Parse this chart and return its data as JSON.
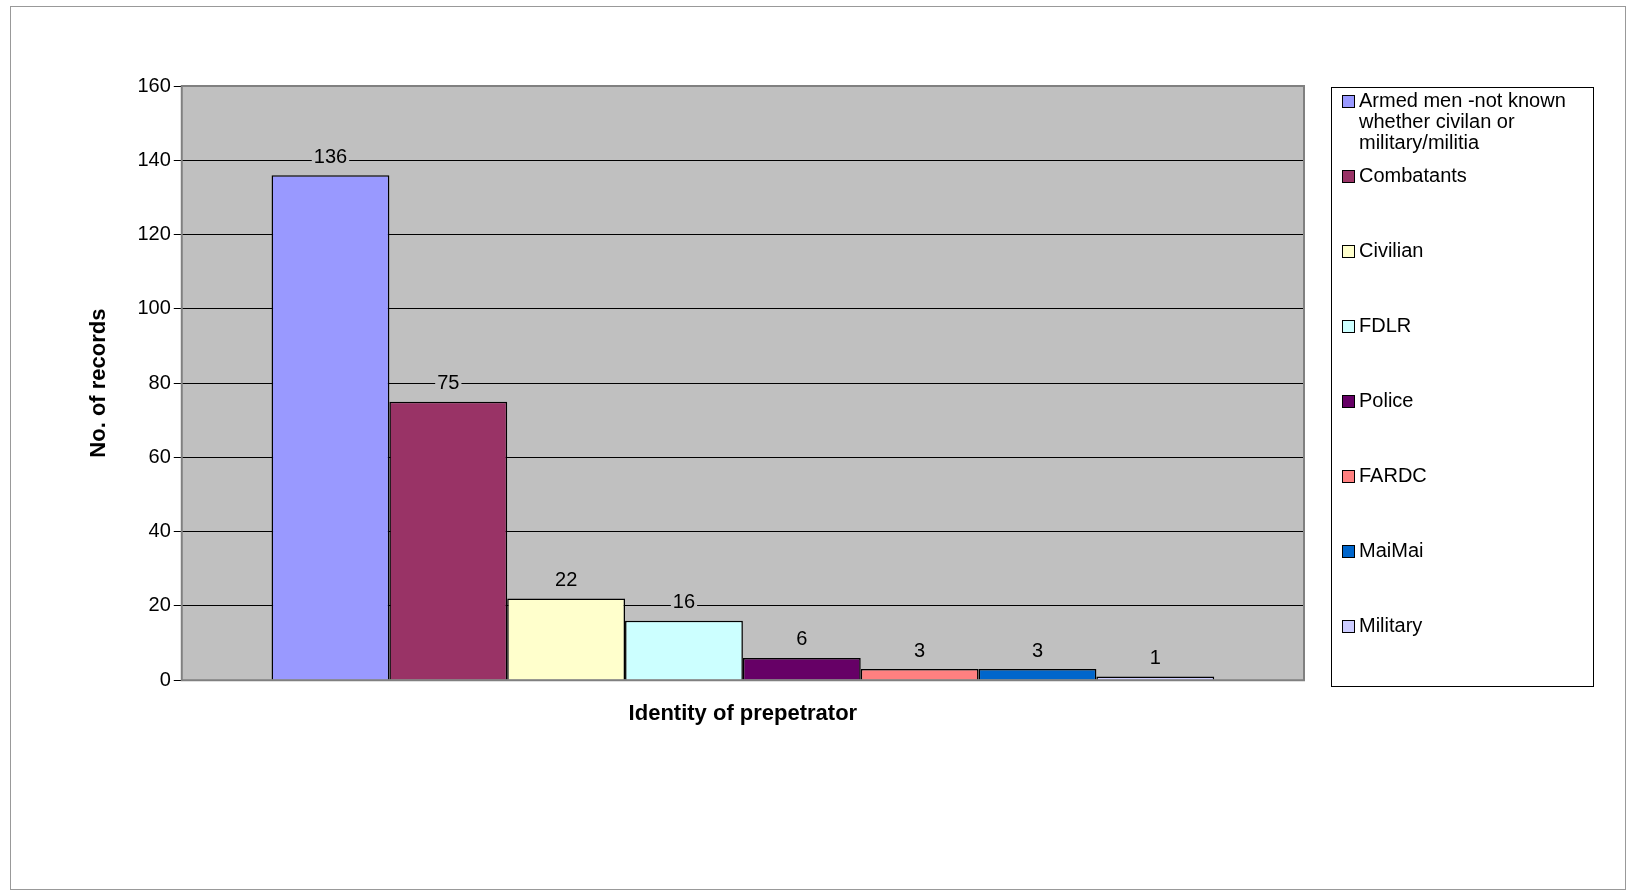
{
  "chart_data": {
    "type": "bar",
    "xlabel": "Identity of prepetrator",
    "ylabel": "No. of records",
    "categories": [
      null
    ],
    "series": [
      {
        "name": "Armed men -not known whether civilan or military/militia",
        "color": "#9999ff",
        "values": [
          136
        ]
      },
      {
        "name": "Combatants",
        "color": "#993366",
        "values": [
          75
        ]
      },
      {
        "name": "Civilian",
        "color": "#ffffcc",
        "values": [
          22
        ]
      },
      {
        "name": "FDLR",
        "color": "#ccffff",
        "values": [
          16
        ]
      },
      {
        "name": "Police",
        "color": "#660066",
        "values": [
          6
        ]
      },
      {
        "name": "FARDC",
        "color": "#ff8080",
        "values": [
          3
        ]
      },
      {
        "name": "MaiMai",
        "color": "#0066cc",
        "values": [
          3
        ]
      },
      {
        "name": "Military",
        "color": "#ccccff",
        "values": [
          1
        ]
      }
    ],
    "ylim": [
      0,
      160
    ],
    "yticks": [
      0,
      20,
      40,
      60,
      80,
      100,
      120,
      140,
      160
    ],
    "grid": "y",
    "legend": "right",
    "data_labels": true
  }
}
